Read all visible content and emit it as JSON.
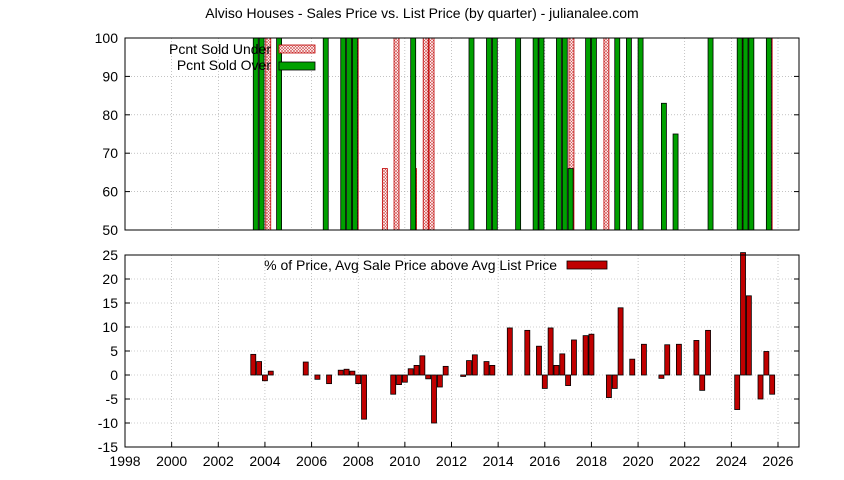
{
  "title": "Alviso Houses - Sales Price vs. List Price (by quarter) - julianalee.com",
  "colors": {
    "under_fill": "#f0c8c8",
    "under_stroke": "#c00000",
    "over": "#00a000",
    "diff": "#c00000"
  },
  "chart_data": [
    {
      "type": "bar",
      "ylim": [
        50,
        100
      ],
      "yticks": [
        50,
        60,
        70,
        80,
        90,
        100
      ],
      "xlim": [
        1998,
        2026.9
      ],
      "grid": true,
      "legend_position": "top-left",
      "series": [
        {
          "name": "Pcnt Sold Under",
          "style": "pattern",
          "x": [
            2004.25,
            2008.0,
            2009.25,
            2009.75,
            2010.5,
            2011.0,
            2011.25,
            2017.25,
            2018.75,
            2024.5,
            2025.75
          ],
          "values": [
            100,
            100,
            66,
            100,
            66,
            100,
            100,
            100,
            100,
            100,
            100
          ]
        },
        {
          "name": "Pcnt Sold Over",
          "style": "solid",
          "x": [
            2003.5,
            2003.75,
            2004.5,
            2006.5,
            2007.25,
            2007.5,
            2007.75,
            2010.25,
            2012.75,
            2013.5,
            2013.75,
            2014.75,
            2015.5,
            2015.75,
            2016.5,
            2016.75,
            2017.0,
            2017.75,
            2018.0,
            2019.0,
            2019.5,
            2020.0,
            2021.0,
            2021.5,
            2023.0,
            2024.25,
            2024.5,
            2024.75,
            2025.5
          ],
          "values": [
            100,
            100,
            100,
            100,
            100,
            100,
            100,
            100,
            100,
            100,
            100,
            100,
            100,
            100,
            100,
            100,
            66,
            100,
            100,
            100,
            100,
            100,
            83,
            75,
            100,
            100,
            100,
            100,
            100
          ]
        }
      ]
    },
    {
      "type": "bar",
      "ylim": [
        -15,
        25
      ],
      "yticks": [
        -15,
        -10,
        -5,
        0,
        5,
        10,
        15,
        20,
        25
      ],
      "xlim": [
        1998,
        2026.9
      ],
      "xticks": [
        "1998",
        "2000",
        "2002",
        "2004",
        "2006",
        "2008",
        "2010",
        "2012",
        "2014",
        "2016",
        "2018",
        "2020",
        "2022",
        "2024",
        "2026"
      ],
      "grid": true,
      "legend_position": "top-center",
      "series": [
        {
          "name": "% of Price, Avg Sale Price above Avg List Price",
          "x": [
            2003.5,
            2003.75,
            2004.0,
            2004.25,
            2005.75,
            2006.25,
            2006.75,
            2007.25,
            2007.5,
            2007.75,
            2008.0,
            2008.25,
            2009.5,
            2009.75,
            2010.0,
            2010.25,
            2010.5,
            2010.75,
            2011.0,
            2011.25,
            2011.5,
            2011.75,
            2012.5,
            2012.75,
            2013.0,
            2013.5,
            2013.75,
            2014.5,
            2015.25,
            2015.75,
            2016.0,
            2016.25,
            2016.5,
            2016.75,
            2017.0,
            2017.25,
            2017.75,
            2018.0,
            2018.75,
            2019.0,
            2019.25,
            2019.75,
            2020.25,
            2021.0,
            2021.25,
            2021.75,
            2022.5,
            2022.75,
            2023.0,
            2024.25,
            2024.5,
            2024.75,
            2025.25,
            2025.5,
            2025.75
          ],
          "values": [
            4.3,
            2.8,
            -1.2,
            0.8,
            2.7,
            -0.9,
            -1.8,
            1.0,
            1.2,
            0.8,
            -1.8,
            -9.2,
            -4.0,
            -2.0,
            -1.5,
            1.3,
            2.0,
            4.0,
            -0.8,
            -10.0,
            -2.5,
            1.8,
            -0.3,
            3.0,
            4.2,
            2.8,
            2.0,
            9.8,
            9.3,
            6.0,
            -2.8,
            9.8,
            2.0,
            4.4,
            -2.2,
            7.3,
            8.2,
            8.5,
            -4.7,
            -2.8,
            14.0,
            3.3,
            6.4,
            -0.7,
            6.3,
            6.4,
            7.2,
            -3.2,
            9.3,
            -7.2,
            25.5,
            16.5,
            -5.0,
            4.9,
            -4.0
          ]
        }
      ]
    }
  ]
}
